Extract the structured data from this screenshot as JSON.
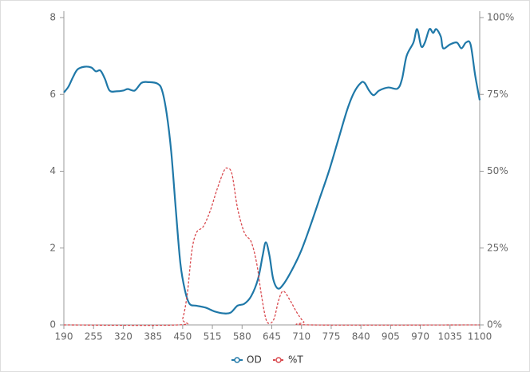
{
  "chart_data": {
    "type": "line",
    "xlim": [
      190,
      1100
    ],
    "xticks": [
      190,
      255,
      320,
      385,
      450,
      515,
      580,
      645,
      710,
      775,
      840,
      905,
      970,
      1035,
      1100
    ],
    "ylim": [
      0,
      8
    ],
    "yticks": [
      0,
      2,
      4,
      6,
      8
    ],
    "y2lim": [
      0,
      100
    ],
    "y2ticks": [
      {
        "value": 0,
        "label": "0%"
      },
      {
        "value": 25,
        "label": "25%"
      },
      {
        "value": 50,
        "label": "50%"
      },
      {
        "value": 75,
        "label": "75%"
      },
      {
        "value": 100,
        "label": "100%"
      }
    ],
    "legend": "bottom",
    "series": [
      {
        "name": "OD",
        "color": "#1f78a8",
        "dash": false,
        "x": [
          190,
          200,
          210,
          220,
          235,
          250,
          260,
          270,
          280,
          290,
          305,
          320,
          330,
          345,
          360,
          375,
          395,
          405,
          415,
          425,
          435,
          445,
          455,
          465,
          480,
          500,
          520,
          540,
          555,
          570,
          585,
          600,
          615,
          625,
          632,
          640,
          648,
          658,
          670,
          690,
          710,
          730,
          750,
          770,
          790,
          810,
          825,
          840,
          848,
          858,
          868,
          880,
          900,
          920,
          930,
          940,
          955,
          963,
          972,
          980,
          990,
          998,
          1005,
          1015,
          1020,
          1035,
          1050,
          1060,
          1070,
          1080,
          1090,
          1100
        ],
        "values": [
          6.05,
          6.2,
          6.45,
          6.65,
          6.72,
          6.7,
          6.6,
          6.62,
          6.4,
          6.1,
          6.08,
          6.1,
          6.14,
          6.1,
          6.3,
          6.32,
          6.28,
          6.1,
          5.5,
          4.5,
          3.0,
          1.6,
          0.9,
          0.55,
          0.5,
          0.45,
          0.35,
          0.3,
          0.32,
          0.5,
          0.55,
          0.75,
          1.2,
          1.8,
          2.15,
          1.8,
          1.2,
          0.95,
          1.05,
          1.45,
          1.95,
          2.6,
          3.3,
          4.0,
          4.8,
          5.6,
          6.05,
          6.3,
          6.3,
          6.1,
          5.98,
          6.1,
          6.18,
          6.15,
          6.4,
          7.0,
          7.35,
          7.7,
          7.25,
          7.35,
          7.7,
          7.6,
          7.7,
          7.5,
          7.2,
          7.3,
          7.35,
          7.2,
          7.35,
          7.3,
          6.5,
          5.85
        ]
      },
      {
        "name": "%T",
        "color": "#d94a4f",
        "dash": true,
        "axis": "y2",
        "x": [
          190,
          440,
          450,
          460,
          470,
          480,
          495,
          510,
          525,
          540,
          548,
          558,
          570,
          585,
          600,
          612,
          622,
          632,
          640,
          650,
          660,
          670,
          685,
          700,
          715,
          730,
          1100
        ],
        "values": [
          0,
          0,
          2,
          10,
          24,
          30,
          32,
          37,
          44,
          50,
          51,
          49,
          38,
          30,
          27,
          20,
          10,
          2,
          0.5,
          2,
          8,
          11,
          8,
          4,
          1,
          0,
          0
        ]
      }
    ]
  }
}
